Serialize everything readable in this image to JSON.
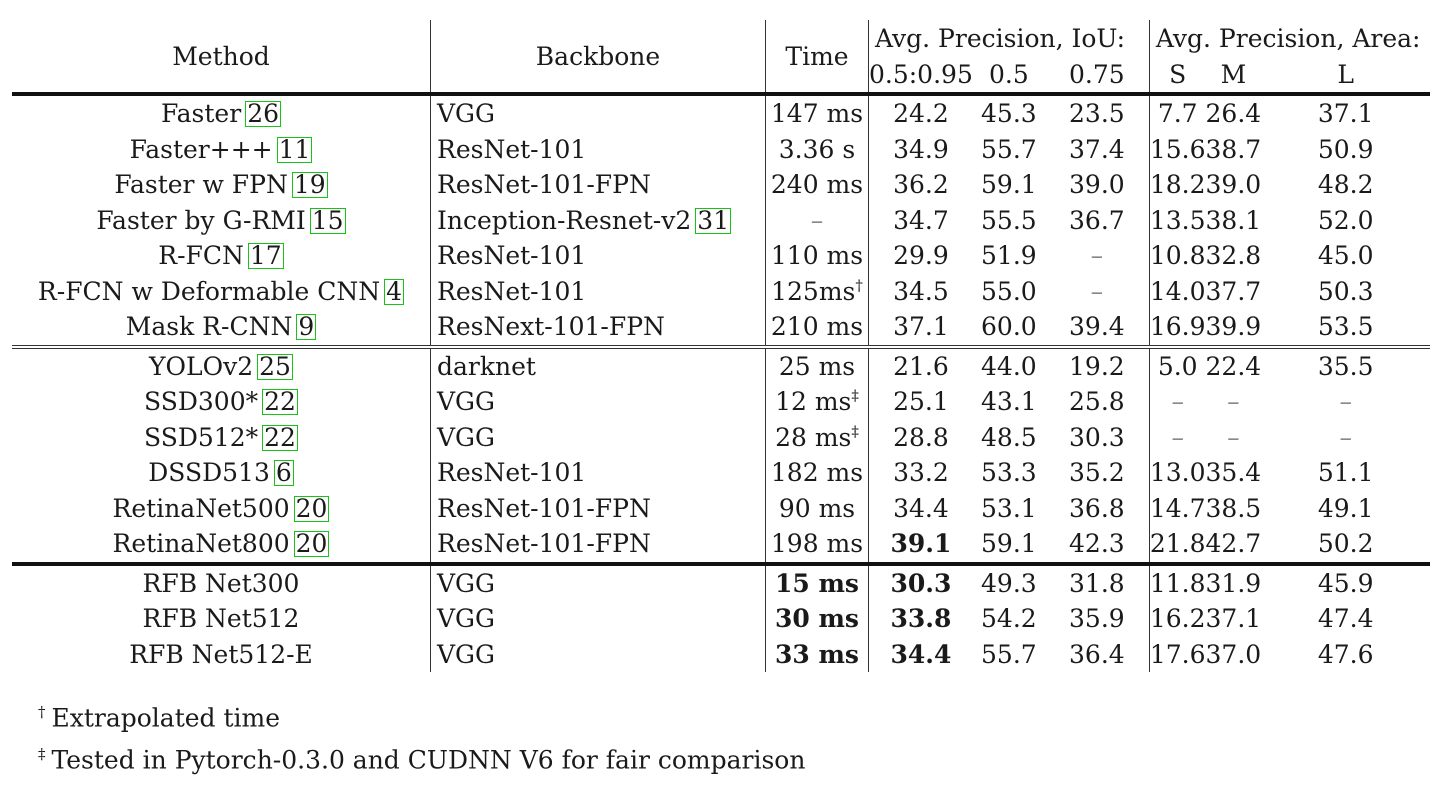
{
  "header": {
    "method": "Method",
    "backbone": "Backbone",
    "time": "Time",
    "group_iou": "Avg. Precision, IoU:",
    "group_area": "Avg. Precision, Area:",
    "iou_cols": [
      "0.5:0.95",
      "0.5",
      "0.75"
    ],
    "area_cols": [
      "S",
      "M",
      "L"
    ]
  },
  "sections": [
    {
      "rows": [
        {
          "method": "Faster",
          "ref": "26",
          "backbone": "VGG",
          "backbone_ref": null,
          "time": "147 ms",
          "time_mark": "",
          "time_bold": false,
          "ap": "24.2",
          "ap_bold": false,
          "ap50": "45.3",
          "ap75": "23.5",
          "s": "7.7",
          "m": "26.4",
          "l": "37.1"
        },
        {
          "method": "Faster+++",
          "ref": "11",
          "backbone": "ResNet-101",
          "backbone_ref": null,
          "time": "3.36 s",
          "time_mark": "",
          "time_bold": false,
          "ap": "34.9",
          "ap_bold": false,
          "ap50": "55.7",
          "ap75": "37.4",
          "s": "15.6",
          "m": "38.7",
          "l": "50.9"
        },
        {
          "method": "Faster w FPN",
          "ref": "19",
          "backbone": "ResNet-101-FPN",
          "backbone_ref": null,
          "time": "240 ms",
          "time_mark": "",
          "time_bold": false,
          "ap": "36.2",
          "ap_bold": false,
          "ap50": "59.1",
          "ap75": "39.0",
          "s": "18.2",
          "m": "39.0",
          "l": "48.2"
        },
        {
          "method": "Faster by G-RMI",
          "ref": "15",
          "backbone": "Inception-Resnet-v2",
          "backbone_ref": "31",
          "time": "–",
          "time_mark": "",
          "time_bold": false,
          "ap": "34.7",
          "ap_bold": false,
          "ap50": "55.5",
          "ap75": "36.7",
          "s": "13.5",
          "m": "38.1",
          "l": "52.0"
        },
        {
          "method": "R-FCN",
          "ref": "17",
          "backbone": "ResNet-101",
          "backbone_ref": null,
          "time": "110 ms",
          "time_mark": "",
          "time_bold": false,
          "ap": "29.9",
          "ap_bold": false,
          "ap50": "51.9",
          "ap75": "–",
          "s": "10.8",
          "m": "32.8",
          "l": "45.0"
        },
        {
          "method": "R-FCN w Deformable CNN",
          "ref": "4",
          "backbone": "ResNet-101",
          "backbone_ref": null,
          "time": "125ms",
          "time_mark": "†",
          "time_bold": false,
          "ap": "34.5",
          "ap_bold": false,
          "ap50": "55.0",
          "ap75": "–",
          "s": "14.0",
          "m": "37.7",
          "l": "50.3"
        },
        {
          "method": "Mask R-CNN",
          "ref": "9",
          "backbone": "ResNext-101-FPN",
          "backbone_ref": null,
          "time": "210 ms",
          "time_mark": "",
          "time_bold": false,
          "ap": "37.1",
          "ap_bold": false,
          "ap50": "60.0",
          "ap75": "39.4",
          "s": "16.9",
          "m": "39.9",
          "l": "53.5"
        }
      ]
    },
    {
      "rows": [
        {
          "method": "YOLOv2",
          "ref": "25",
          "backbone": "darknet",
          "backbone_ref": null,
          "time": "25 ms",
          "time_mark": "",
          "time_bold": false,
          "ap": "21.6",
          "ap_bold": false,
          "ap50": "44.0",
          "ap75": "19.2",
          "s": "5.0",
          "m": "22.4",
          "l": "35.5"
        },
        {
          "method": "SSD300*",
          "ref": "22",
          "backbone": "VGG",
          "backbone_ref": null,
          "time": "12 ms",
          "time_mark": "‡",
          "time_bold": false,
          "ap": "25.1",
          "ap_bold": false,
          "ap50": "43.1",
          "ap75": "25.8",
          "s": "–",
          "m": "–",
          "l": "–"
        },
        {
          "method": "SSD512*",
          "ref": "22",
          "backbone": "VGG",
          "backbone_ref": null,
          "time": "28 ms",
          "time_mark": "‡",
          "time_bold": false,
          "ap": "28.8",
          "ap_bold": false,
          "ap50": "48.5",
          "ap75": "30.3",
          "s": "–",
          "m": "–",
          "l": "–"
        },
        {
          "method": "DSSD513",
          "ref": "6",
          "backbone": "ResNet-101",
          "backbone_ref": null,
          "time": "182 ms",
          "time_mark": "",
          "time_bold": false,
          "ap": "33.2",
          "ap_bold": false,
          "ap50": "53.3",
          "ap75": "35.2",
          "s": "13.0",
          "m": "35.4",
          "l": "51.1"
        },
        {
          "method": "RetinaNet500",
          "ref": "20",
          "backbone": "ResNet-101-FPN",
          "backbone_ref": null,
          "time": "90 ms",
          "time_mark": "",
          "time_bold": false,
          "ap": "34.4",
          "ap_bold": false,
          "ap50": "53.1",
          "ap75": "36.8",
          "s": "14.7",
          "m": "38.5",
          "l": "49.1"
        },
        {
          "method": "RetinaNet800",
          "ref": "20",
          "backbone": "ResNet-101-FPN",
          "backbone_ref": null,
          "time": "198 ms",
          "time_mark": "",
          "time_bold": false,
          "ap": "39.1",
          "ap_bold": true,
          "ap50": "59.1",
          "ap75": "42.3",
          "s": "21.8",
          "m": "42.7",
          "l": "50.2"
        }
      ]
    },
    {
      "rows": [
        {
          "method": "RFB Net300",
          "ref": null,
          "backbone": "VGG",
          "backbone_ref": null,
          "time": "15 ms",
          "time_mark": "",
          "time_bold": true,
          "ap": "30.3",
          "ap_bold": true,
          "ap50": "49.3",
          "ap75": "31.8",
          "s": "11.8",
          "m": "31.9",
          "l": "45.9"
        },
        {
          "method": "RFB Net512",
          "ref": null,
          "backbone": "VGG",
          "backbone_ref": null,
          "time": "30 ms",
          "time_mark": "",
          "time_bold": true,
          "ap": "33.8",
          "ap_bold": true,
          "ap50": "54.2",
          "ap75": "35.9",
          "s": "16.2",
          "m": "37.1",
          "l": "47.4"
        },
        {
          "method": "RFB Net512-E",
          "ref": null,
          "backbone": "VGG",
          "backbone_ref": null,
          "time": "33 ms",
          "time_mark": "",
          "time_bold": true,
          "ap": "34.4",
          "ap_bold": true,
          "ap50": "55.7",
          "ap75": "36.4",
          "s": "17.6",
          "m": "37.0",
          "l": "47.6"
        }
      ]
    }
  ],
  "footnotes": [
    {
      "mark": "†",
      "text": "Extrapolated time"
    },
    {
      "mark": "‡",
      "text": "Tested in Pytorch-0.3.0 and CUDNN V6 for fair comparison"
    }
  ]
}
